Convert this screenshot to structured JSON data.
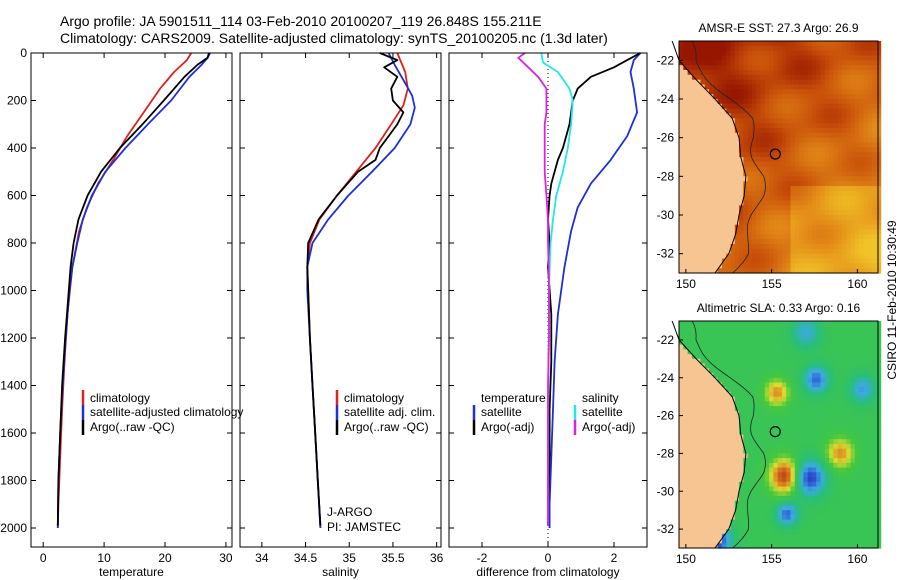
{
  "header": {
    "line1": "Argo profile: JA 5901511_114 03-Feb-2010 20100207_119 26.848S 155.211E",
    "line2": "Climatology: CARS2009. Satellite-adjusted climatology: synTS_20100205.nc (1.3d later)"
  },
  "side_stamp": "CSIRO 11-Feb-2010 10:30:49",
  "colors": {
    "climatology": "#e0201b",
    "satellite": "#1c2fd8",
    "argo": "#000000",
    "argo_diff": "#e020e0",
    "sat_diff": "#20e8e8"
  },
  "chart_data": [
    {
      "type": "line",
      "xlabel": "temperature",
      "ylabel": "",
      "xlim": [
        -2,
        31
      ],
      "ylim": [
        0,
        2080
      ],
      "yreversed": true,
      "xticks": [
        0,
        10,
        20,
        30
      ],
      "yticks": [
        0,
        200,
        400,
        600,
        800,
        1000,
        1200,
        1400,
        1600,
        1800,
        2000
      ],
      "legend": [
        "climatology",
        "satellite-adjusted climatology",
        "Argo(..raw -QC)"
      ],
      "series": [
        {
          "name": "climatology",
          "color": "#e0201b",
          "depth": [
            0,
            30,
            80,
            150,
            250,
            350,
            450,
            550,
            650,
            750,
            900,
            1100,
            1300,
            1500,
            1700,
            1900,
            2000
          ],
          "values": [
            24.3,
            23.6,
            21.5,
            19.2,
            16.5,
            13.8,
            11.5,
            9.0,
            7.2,
            5.9,
            4.8,
            4.0,
            3.5,
            3.1,
            2.8,
            2.5,
            2.4
          ]
        },
        {
          "name": "satellite-adjusted climatology",
          "color": "#1c2fd8",
          "depth": [
            0,
            20,
            50,
            100,
            200,
            300,
            400,
            500,
            600,
            700,
            800,
            900,
            1000,
            1200,
            1400,
            1600,
            1800,
            2000
          ],
          "values": [
            27.4,
            27.0,
            26.0,
            24.0,
            21.0,
            17.2,
            13.5,
            10.2,
            8.0,
            6.5,
            5.6,
            4.8,
            4.3,
            3.7,
            3.2,
            2.8,
            2.5,
            2.4
          ]
        },
        {
          "name": "Argo(..raw -QC)",
          "color": "#000000",
          "depth": [
            0,
            20,
            50,
            100,
            200,
            300,
            400,
            500,
            600,
            700,
            800,
            900,
            1000,
            1200,
            1400,
            1600,
            1800,
            1990
          ],
          "values": [
            27.2,
            27.0,
            25.3,
            23.2,
            19.8,
            16.3,
            12.6,
            9.5,
            7.3,
            5.8,
            5.0,
            4.5,
            4.2,
            3.6,
            3.1,
            2.8,
            2.5,
            2.4
          ]
        }
      ]
    },
    {
      "type": "line",
      "xlabel": "salinity",
      "xlim": [
        33.75,
        36.05
      ],
      "ylim": [
        0,
        2080
      ],
      "yreversed": true,
      "xticks": [
        34,
        34.5,
        35,
        35.5,
        36
      ],
      "yticks": [
        0,
        200,
        400,
        600,
        800,
        1000,
        1200,
        1400,
        1600,
        1800,
        2000
      ],
      "legend": [
        "climatology",
        "satellite adj. clim.",
        "Argo(..raw -QC)"
      ],
      "annotations": [
        "J-ARGO",
        "PI: JAMSTEC"
      ],
      "series": [
        {
          "name": "climatology",
          "color": "#e0201b",
          "depth": [
            0,
            80,
            150,
            220,
            300,
            400,
            500,
            600,
            700,
            800,
            900,
            1000,
            1200,
            1400,
            1600,
            1800,
            2000
          ],
          "values": [
            35.55,
            35.64,
            35.67,
            35.62,
            35.48,
            35.3,
            35.08,
            34.86,
            34.66,
            34.55,
            34.52,
            34.53,
            34.55,
            34.58,
            34.61,
            34.64,
            34.67
          ]
        },
        {
          "name": "satellite adj. clim.",
          "color": "#1c2fd8",
          "depth": [
            0,
            50,
            120,
            180,
            230,
            300,
            400,
            500,
            600,
            700,
            800,
            900,
            1000,
            1200,
            1400,
            1600,
            1800,
            2000
          ],
          "values": [
            35.45,
            35.52,
            35.63,
            35.72,
            35.75,
            35.7,
            35.52,
            35.26,
            34.99,
            34.76,
            34.58,
            34.52,
            34.52,
            34.55,
            34.58,
            34.61,
            34.64,
            34.67
          ]
        },
        {
          "name": "Argo(..raw -QC)",
          "color": "#000000",
          "depth": [
            0,
            30,
            60,
            100,
            150,
            200,
            250,
            300,
            350,
            400,
            450,
            500,
            600,
            700,
            800,
            900,
            1000,
            1200,
            1400,
            1600,
            1800,
            1990
          ],
          "values": [
            35.35,
            35.55,
            35.4,
            35.55,
            35.48,
            35.5,
            35.62,
            35.55,
            35.45,
            35.35,
            35.3,
            35.1,
            34.86,
            34.65,
            34.53,
            34.52,
            34.53,
            34.55,
            34.58,
            34.61,
            34.64,
            34.67
          ]
        }
      ]
    },
    {
      "type": "line",
      "xlabel": "difference from climatology",
      "xlim": [
        -3,
        3
      ],
      "ylim": [
        0,
        2080
      ],
      "yreversed": true,
      "xticks": [
        -2,
        0,
        2
      ],
      "yticks": [
        0,
        200,
        400,
        600,
        800,
        1000,
        1200,
        1400,
        1600,
        1800,
        2000
      ],
      "legend_groups": [
        {
          "heading": "temperature",
          "items": [
            "satellite",
            "Argo(-adj)"
          ]
        },
        {
          "heading": "salinity",
          "items": [
            "satellite",
            "Argo(-adj)"
          ]
        }
      ],
      "series": [
        {
          "name": "temperature satellite",
          "color": "#1c2fd8",
          "depth": [
            0,
            30,
            80,
            150,
            250,
            350,
            450,
            550,
            650,
            750,
            900,
            1100,
            1300,
            1500,
            1700,
            1900,
            2000
          ],
          "values": [
            2.8,
            2.6,
            2.5,
            2.6,
            2.7,
            2.4,
            1.9,
            1.3,
            0.9,
            0.7,
            0.5,
            0.3,
            0.2,
            0.15,
            0.1,
            0.05,
            0.05
          ]
        },
        {
          "name": "temperature Argo(-adj)",
          "color": "#000000",
          "depth": [
            0,
            30,
            60,
            100,
            150,
            200,
            300,
            400,
            450,
            500,
            550,
            600,
            700,
            800,
            900,
            1100,
            1300,
            1500,
            1700,
            1900,
            1990
          ],
          "values": [
            2.8,
            2.4,
            2.0,
            1.3,
            0.9,
            0.75,
            0.65,
            0.45,
            0.3,
            0.2,
            0.1,
            0.05,
            0.0,
            0.05,
            0.0,
            0.1,
            0.1,
            0.05,
            0.05,
            0.0,
            0.0
          ]
        },
        {
          "name": "salinity satellite",
          "color": "#20e8e8",
          "depth": [
            0,
            40,
            80,
            150,
            200,
            300,
            400,
            500,
            600,
            700,
            800,
            900,
            1000,
            1200,
            1400,
            1600,
            1800,
            1990
          ],
          "values": [
            -0.2,
            -0.15,
            0.3,
            0.65,
            0.75,
            0.7,
            0.6,
            0.45,
            0.25,
            0.15,
            0.08,
            0.05,
            0.03,
            0.02,
            0.01,
            0.0,
            0.0,
            0.0
          ]
        },
        {
          "name": "salinity Argo(-adj)",
          "color": "#e020e0",
          "depth": [
            0,
            20,
            60,
            100,
            150,
            200,
            250,
            300,
            400,
            450,
            500,
            600,
            700,
            800,
            900,
            1000,
            1200,
            1400,
            1600,
            1800,
            1990
          ],
          "values": [
            -0.7,
            -0.9,
            -0.6,
            -0.3,
            -0.05,
            -0.05,
            -0.05,
            -0.1,
            -0.1,
            -0.1,
            -0.1,
            -0.05,
            0.0,
            0.0,
            0.02,
            0.03,
            0.03,
            0.0,
            0.0,
            0.0,
            0.0
          ]
        }
      ]
    },
    {
      "type": "heatmap",
      "title": "AMSR-E SST: 27.3 Argo: 26.9",
      "xlim": [
        149.6,
        161.2
      ],
      "ylim": [
        -33,
        -21
      ],
      "xticks": [
        150,
        155,
        160
      ],
      "yticks": [
        -22,
        -24,
        -26,
        -28,
        -30,
        -32
      ],
      "marker": {
        "lon": 155.211,
        "lat": -26.848
      }
    },
    {
      "type": "heatmap",
      "title": "Altimetric SLA: 0.33 Argo: 0.16",
      "xlim": [
        149.6,
        161.2
      ],
      "ylim": [
        -33,
        -21
      ],
      "xticks": [
        150,
        155,
        160
      ],
      "yticks": [
        -22,
        -24,
        -26,
        -28,
        -30,
        -32
      ],
      "marker": {
        "lon": 155.211,
        "lat": -26.848
      }
    }
  ]
}
